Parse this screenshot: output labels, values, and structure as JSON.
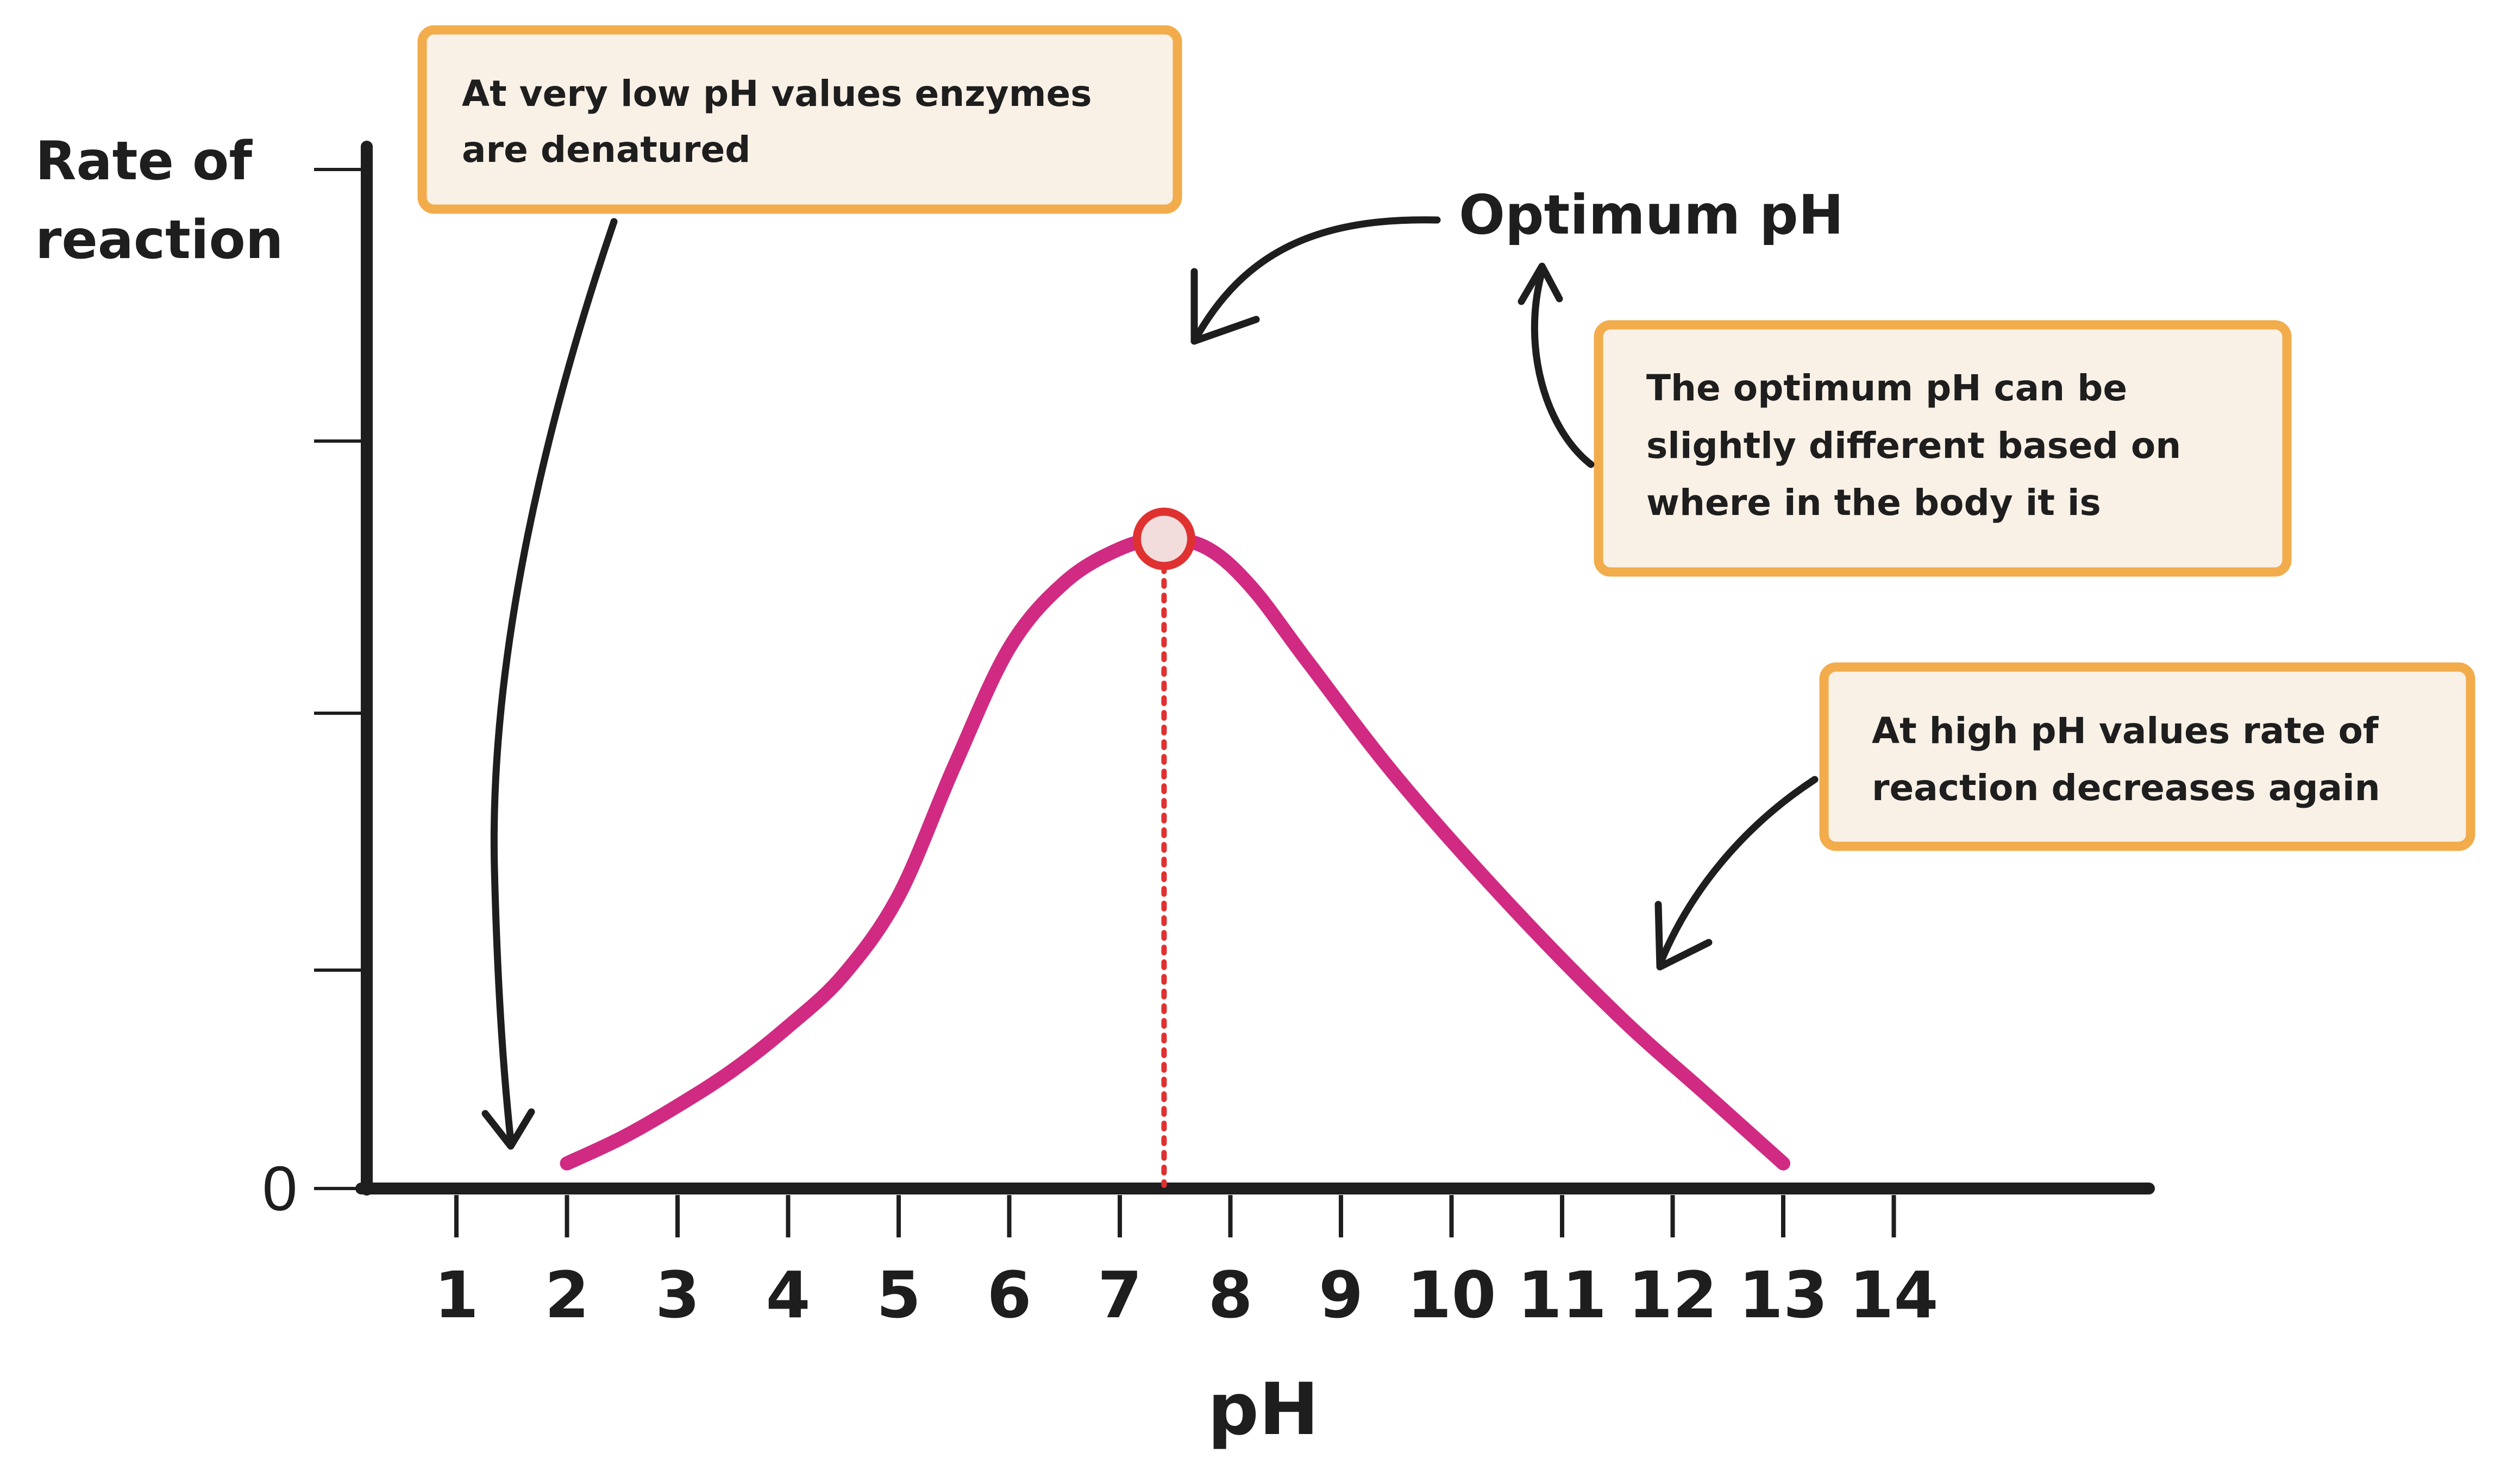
{
  "chart_data": {
    "type": "line",
    "xlabel": "pH",
    "ylabel_lines": [
      "Rate of",
      "reaction"
    ],
    "x_ticks": [
      "1",
      "2",
      "3",
      "4",
      "5",
      "6",
      "7",
      "8",
      "9",
      "10",
      "11",
      "12",
      "13",
      "14"
    ],
    "y_zero_label": "0",
    "xlim": [
      1,
      14
    ],
    "ylim": [
      0,
      4
    ],
    "series": [
      {
        "color": "#d12a83",
        "points": [
          [
            2,
            0.05
          ],
          [
            2.5,
            0.18
          ],
          [
            3,
            0.34
          ],
          [
            3.5,
            0.52
          ],
          [
            4,
            0.74
          ],
          [
            4.5,
            1.0
          ],
          [
            5,
            1.4
          ],
          [
            5.5,
            2.05
          ],
          [
            6,
            2.65
          ],
          [
            6.5,
            2.98
          ],
          [
            7,
            3.15
          ],
          [
            7.4,
            3.2
          ],
          [
            7.8,
            3.15
          ],
          [
            8.2,
            2.95
          ],
          [
            8.7,
            2.58
          ],
          [
            9.5,
            2.0
          ],
          [
            10.5,
            1.37
          ],
          [
            11.5,
            0.8
          ],
          [
            12.3,
            0.4
          ],
          [
            13,
            0.05
          ]
        ]
      }
    ],
    "optimum": {
      "x": 7.4,
      "y": 3.2,
      "label": "Optimum pH"
    },
    "annotations": [
      {
        "name": "low-ph",
        "lines": [
          "At very low pH values enzymes",
          "are denatured"
        ]
      },
      {
        "name": "optimum-varies",
        "lines": [
          "The optimum pH can be",
          "slightly different based on",
          "where in the body it is"
        ]
      },
      {
        "name": "high-ph",
        "lines": [
          "At high pH values rate of",
          "reaction decreases again"
        ]
      }
    ],
    "colors": {
      "curve": "#d12a83",
      "optimum_marker": "#e03131",
      "box_border": "#f2ac4b",
      "box_fill": "#f9f0e6"
    }
  }
}
